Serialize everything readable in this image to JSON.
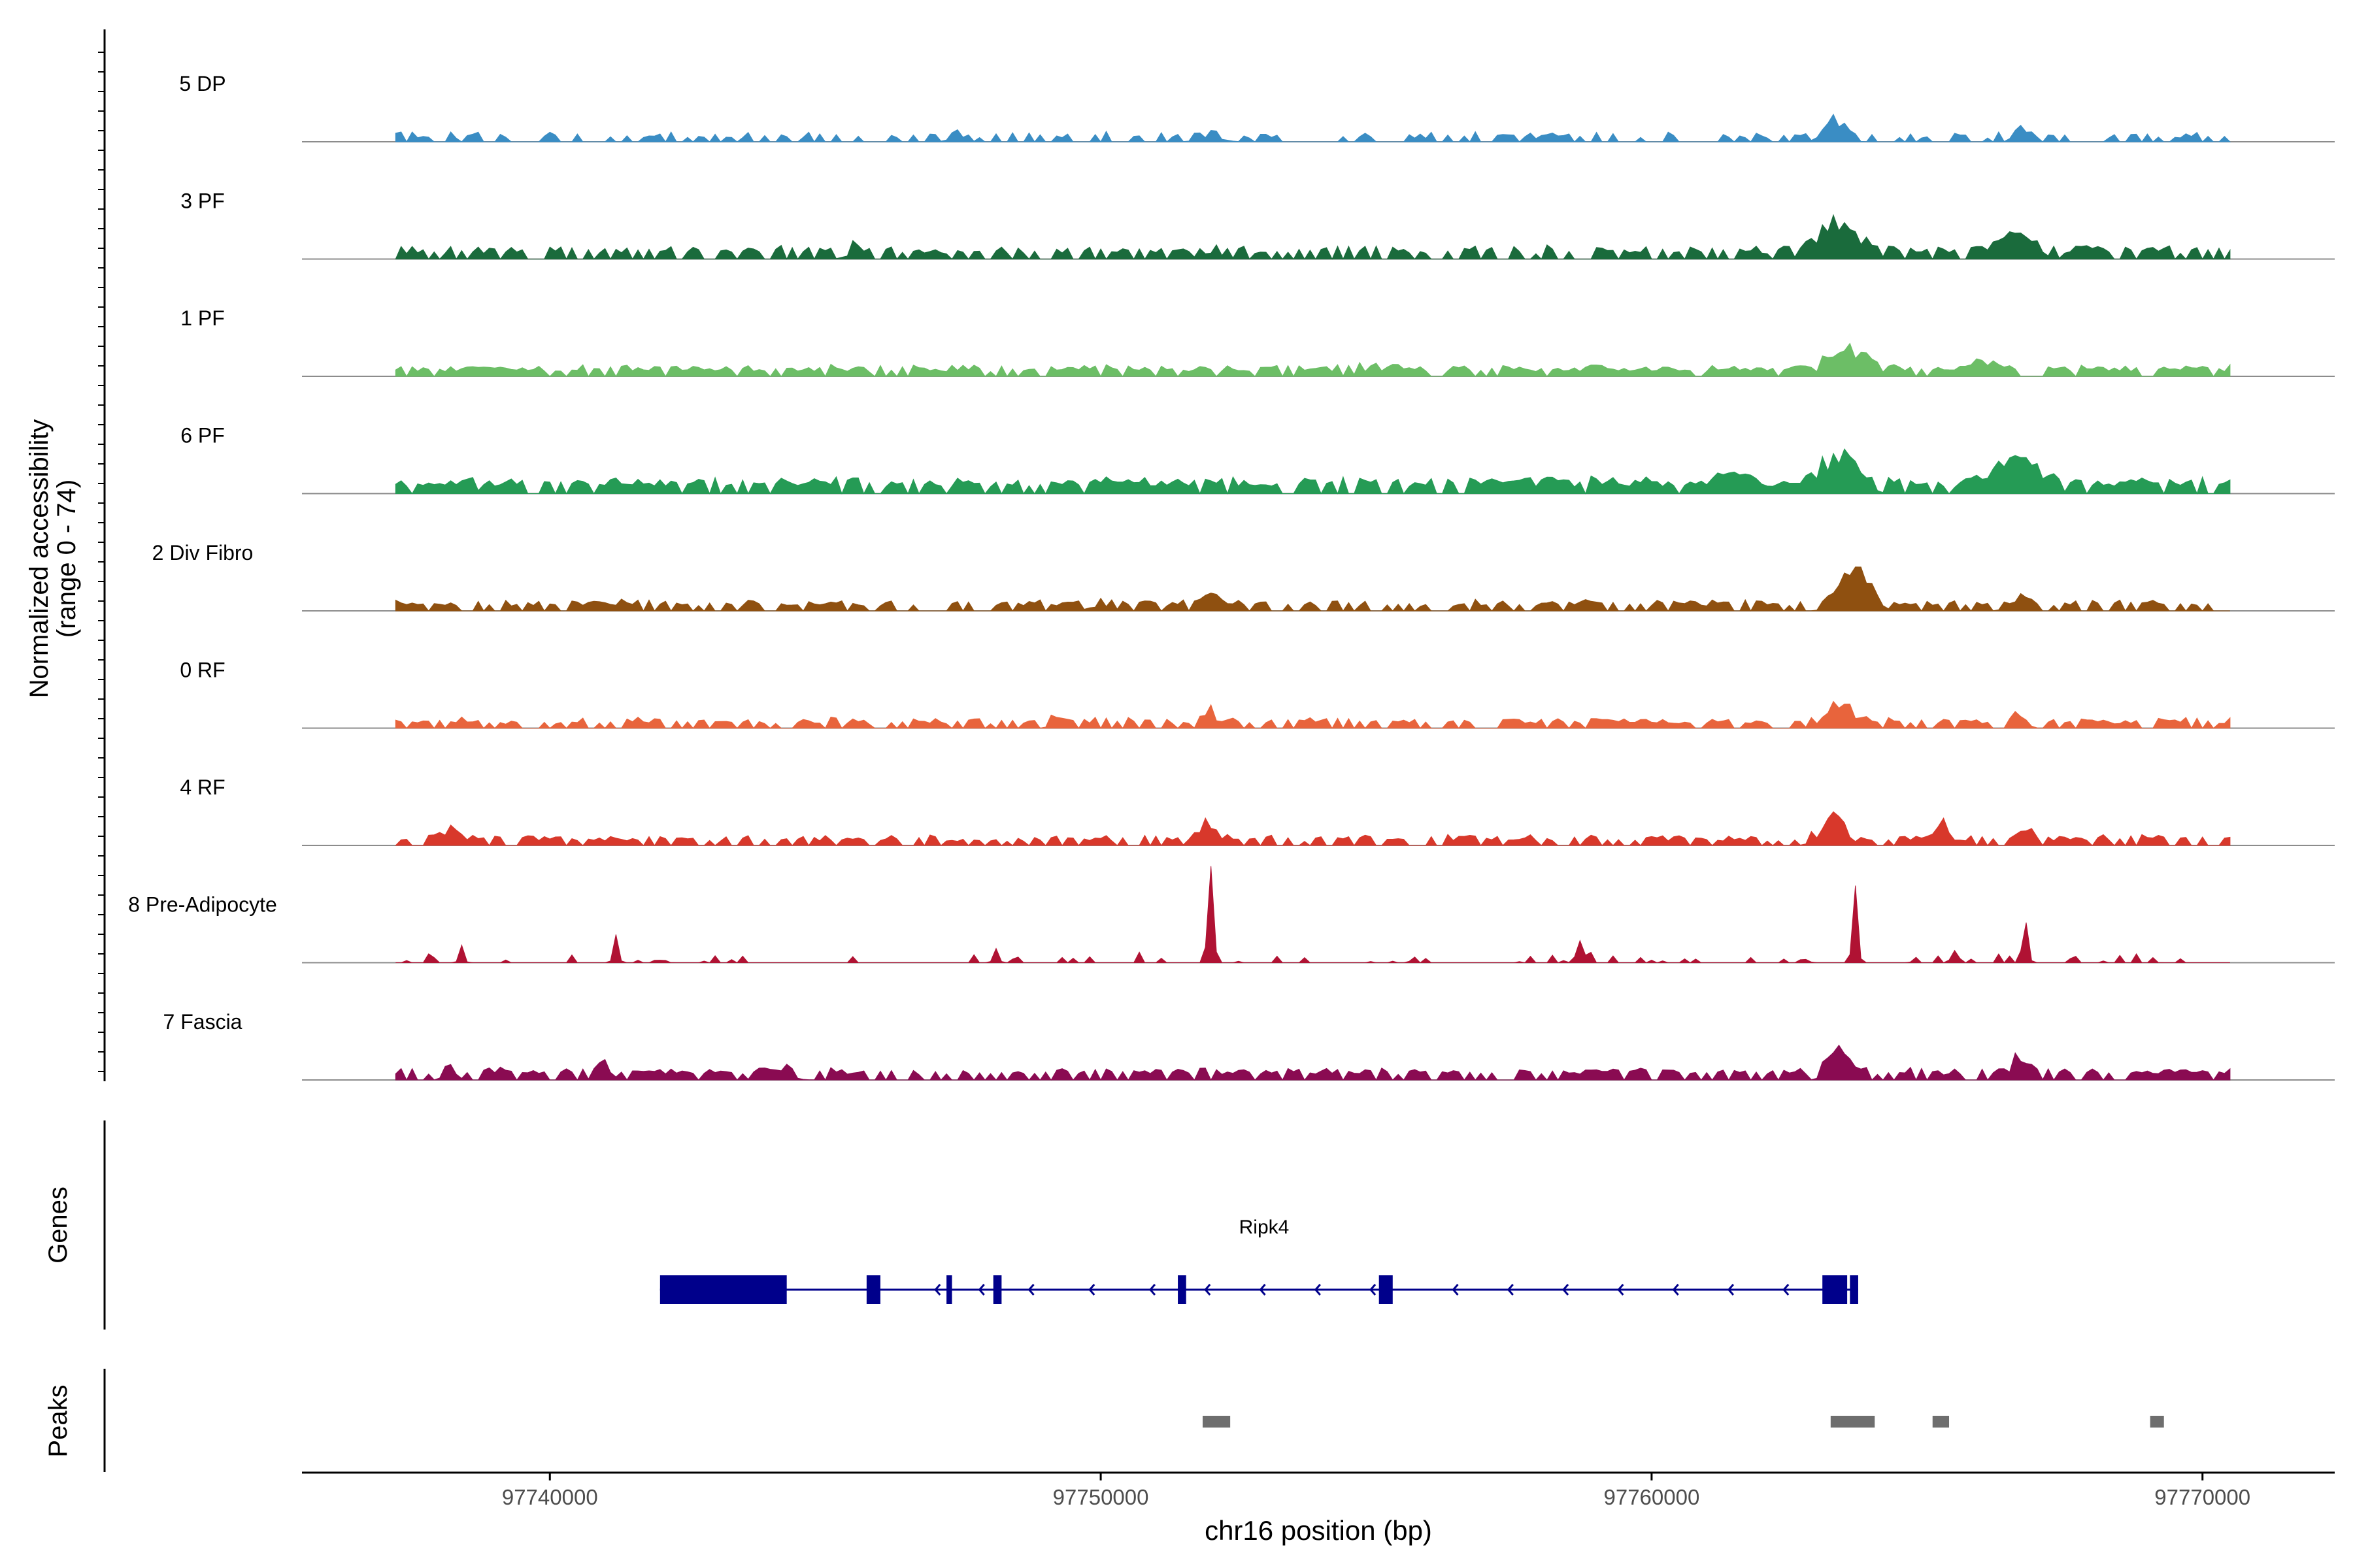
{
  "chart_data": {
    "type": "area",
    "title": "",
    "genome": {
      "chromosome": "chr16",
      "xlabel": "chr16 position (bp)",
      "xlim": [
        97735500,
        97772400
      ],
      "xticks": [
        97740000,
        97750000,
        97760000,
        97770000
      ],
      "xtick_labels": [
        "97740000",
        "97750000",
        "97760000",
        "97770000"
      ]
    },
    "coverage": {
      "ylabel_line1": "Normalized accessibility",
      "ylabel_line2": "(range 0 - 74)",
      "ylim": [
        0,
        74
      ],
      "data_start": 97737200,
      "data_step": 100,
      "tracks": [
        {
          "name": "5 DP",
          "color": "#3a8dc4",
          "base": 2.5,
          "noise": 4,
          "sparse": 0.55,
          "jitter": 0.3,
          "peaks": [
            [
              97763300,
              14,
              250
            ],
            [
              97766700,
              12,
              150
            ],
            [
              97747400,
              4,
              200
            ],
            [
              97752000,
              3,
              300
            ]
          ]
        },
        {
          "name": "3 PF",
          "color": "#1a6b3c",
          "base": 4,
          "noise": 5,
          "sparse": 0.35,
          "jitter": 0.3,
          "peaks": [
            [
              97763400,
              22,
              500
            ],
            [
              97766700,
              12,
              400
            ],
            [
              97752000,
              4,
              300
            ],
            [
              97745500,
              3,
              200
            ]
          ]
        },
        {
          "name": "1 PF",
          "color": "#6cbe66",
          "base": 3.5,
          "noise": 4,
          "sparse": 0.15,
          "jitter": 0.3,
          "peaks": [
            [
              97763600,
              14,
              500
            ],
            [
              97766000,
              5,
              300
            ],
            [
              97755000,
              4,
              400
            ]
          ]
        },
        {
          "name": "6 PF",
          "color": "#259b55",
          "base": 5,
          "noise": 6,
          "sparse": 0.2,
          "jitter": 0.3,
          "peaks": [
            [
              97763400,
              22,
              450
            ],
            [
              97766700,
              18,
              500
            ],
            [
              97761500,
              6,
              300
            ],
            [
              97738600,
              4,
              150
            ]
          ]
        },
        {
          "name": "2 Div Fibro",
          "color": "#8f5010",
          "base": 3.5,
          "noise": 4,
          "sparse": 0.35,
          "jitter": 0.3,
          "peaks": [
            [
              97763700,
              26,
              350
            ],
            [
              97752000,
              10,
              200
            ],
            [
              97766600,
              7,
              200
            ],
            [
              97750000,
              3,
              300
            ]
          ]
        },
        {
          "name": "0 RF",
          "color": "#e8643c",
          "base": 3,
          "noise": 4,
          "sparse": 0.35,
          "jitter": 0.3,
          "peaks": [
            [
              97763400,
              14,
              350
            ],
            [
              97752000,
              9,
              150
            ],
            [
              97766700,
              9,
              150
            ],
            [
              97749200,
              4,
              150
            ]
          ]
        },
        {
          "name": "4 RF",
          "color": "#d8382b",
          "base": 3,
          "noise": 4,
          "sparse": 0.35,
          "jitter": 0.3,
          "peaks": [
            [
              97763300,
              16,
              300
            ],
            [
              97751950,
              12,
              250
            ],
            [
              97765300,
              14,
              180
            ],
            [
              97738200,
              10,
              200
            ],
            [
              97766800,
              6,
              150
            ]
          ]
        },
        {
          "name": "8 Pre-Adipocyte",
          "color": "#b01233",
          "base": 0,
          "noise": 6,
          "sparse": 0.85,
          "jitter": 0.6,
          "peaks": [
            [
              97752000,
              70,
              70
            ],
            [
              97763700,
              48,
              60
            ],
            [
              97741200,
              20,
              60
            ],
            [
              97766800,
              26,
              60
            ],
            [
              97758700,
              12,
              100
            ],
            [
              97748100,
              12,
              60
            ],
            [
              97738400,
              10,
              60
            ],
            [
              97765500,
              12,
              80
            ]
          ]
        },
        {
          "name": "7 Fascia",
          "color": "#8a0b52",
          "base": 4,
          "noise": 4,
          "sparse": 0.3,
          "jitter": 0.3,
          "peaks": [
            [
              97763400,
              16,
              250
            ],
            [
              97766700,
              14,
              200
            ],
            [
              97738200,
              7,
              150
            ],
            [
              97744100,
              8,
              300
            ],
            [
              97741000,
              6,
              200
            ]
          ]
        }
      ]
    },
    "genes": {
      "label": "Genes",
      "name": "Ripk4",
      "strand": "-",
      "tx_start": 97742000,
      "tx_end": 97763750,
      "exons": [
        [
          97742000,
          97744300
        ],
        [
          97745750,
          97746000
        ],
        [
          97747200,
          97747300
        ],
        [
          97748050,
          97748200
        ],
        [
          97751400,
          97751550
        ],
        [
          97755050,
          97755300
        ],
        [
          97763100,
          97763550
        ],
        [
          97763600,
          97763750
        ]
      ],
      "arrow_positions": [
        97747000,
        97747800,
        97748700,
        97749800,
        97750900,
        97751900,
        97752900,
        97753900,
        97754900,
        97756400,
        97757400,
        97758400,
        97759400,
        97760400,
        97761400,
        97762400
      ]
    },
    "peaks": {
      "label": "Peaks",
      "regions": [
        [
          97751850,
          97752350
        ],
        [
          97763250,
          97764050
        ],
        [
          97765100,
          97765400
        ],
        [
          97769050,
          97769300
        ]
      ]
    }
  }
}
